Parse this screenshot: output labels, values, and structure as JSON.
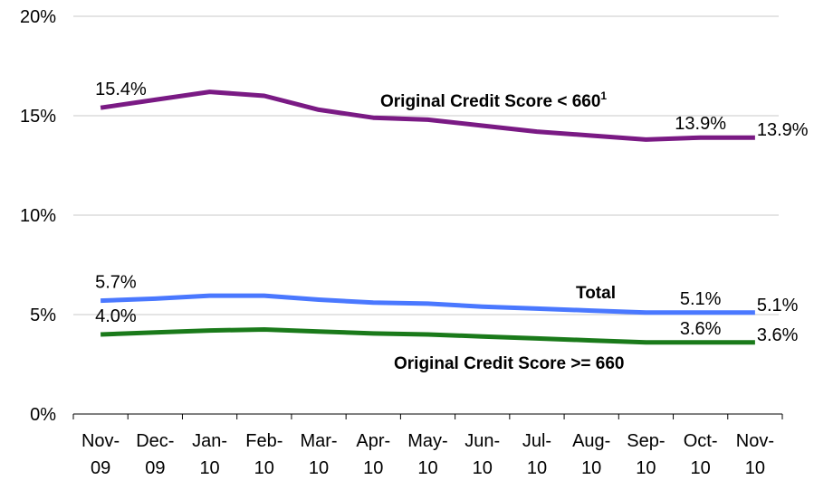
{
  "chart_data": {
    "type": "line",
    "categories": [
      "Nov-09",
      "Dec-09",
      "Jan-10",
      "Feb-10",
      "Mar-10",
      "Apr-10",
      "May-10",
      "Jun-10",
      "Jul-10",
      "Aug-10",
      "Sep-10",
      "Oct-10",
      "Nov-10"
    ],
    "ylim": [
      0,
      20
    ],
    "yticks": [
      {
        "value": 0,
        "label": "0%"
      },
      {
        "value": 5,
        "label": "5%"
      },
      {
        "value": 10,
        "label": "10%"
      },
      {
        "value": 15,
        "label": "15%"
      },
      {
        "value": 20,
        "label": "20%"
      }
    ],
    "grid": true,
    "series": [
      {
        "name": "Original Credit Score < 660",
        "name_superscript": "1",
        "color": "#7a1a84",
        "values": [
          15.4,
          15.8,
          16.2,
          16.0,
          15.3,
          14.9,
          14.8,
          14.5,
          14.2,
          14.0,
          13.8,
          13.9,
          13.9
        ],
        "value_labels": [
          "15.4%",
          null,
          null,
          null,
          null,
          null,
          null,
          null,
          null,
          null,
          null,
          "13.9%",
          "13.9%"
        ]
      },
      {
        "name": "Total",
        "color": "#4a78ff",
        "values": [
          5.7,
          5.8,
          5.95,
          5.95,
          5.75,
          5.6,
          5.55,
          5.4,
          5.3,
          5.2,
          5.1,
          5.1,
          5.1
        ],
        "value_labels": [
          "5.7%",
          null,
          null,
          null,
          null,
          null,
          null,
          null,
          null,
          null,
          null,
          "5.1%",
          "5.1%"
        ]
      },
      {
        "name": "Original Credit Score >= 660",
        "color": "#1a7a1a",
        "values": [
          4.0,
          4.1,
          4.2,
          4.25,
          4.15,
          4.05,
          4.0,
          3.9,
          3.8,
          3.7,
          3.6,
          3.6,
          3.6
        ],
        "value_labels": [
          "4.0%",
          null,
          null,
          null,
          null,
          null,
          null,
          null,
          null,
          null,
          null,
          "3.6%",
          "3.6%"
        ]
      }
    ]
  }
}
